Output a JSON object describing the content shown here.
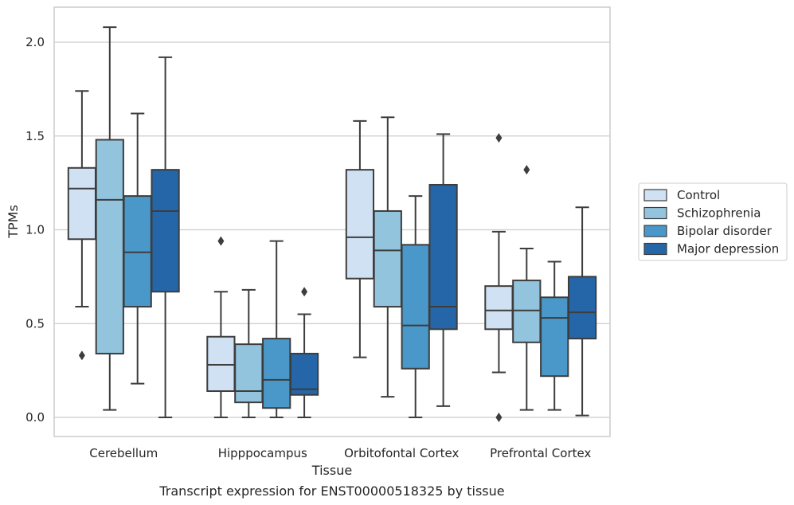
{
  "chart_data": {
    "type": "boxplot",
    "title": "Transcript expression for ENST00000518325 by tissue",
    "xlabel": "Tissue",
    "ylabel": "TPMs",
    "ylim": [
      -0.1,
      2.2
    ],
    "yticks": [
      0.0,
      0.5,
      1.0,
      1.5,
      2.0
    ],
    "ytick_labels": [
      "0.0",
      "0.5",
      "1.0",
      "1.5",
      "2.0"
    ],
    "grid": "horizontal",
    "legend_position": "right-outside",
    "categories": [
      "Cerebellum",
      "Hipppocampus",
      "Orbitofontal Cortex",
      "Prefrontal Cortex"
    ],
    "series": [
      {
        "name": "Control",
        "color": "#cfe1f2",
        "boxes": [
          {
            "whislo": 0.59,
            "q1": 0.95,
            "med": 1.22,
            "q3": 1.33,
            "whishi": 1.74,
            "fliers": [
              0.33
            ]
          },
          {
            "whislo": 0.0,
            "q1": 0.14,
            "med": 0.28,
            "q3": 0.43,
            "whishi": 0.67,
            "fliers": [
              0.94
            ]
          },
          {
            "whislo": 0.32,
            "q1": 0.74,
            "med": 0.96,
            "q3": 1.32,
            "whishi": 1.58,
            "fliers": []
          },
          {
            "whislo": 0.24,
            "q1": 0.47,
            "med": 0.57,
            "q3": 0.7,
            "whishi": 0.99,
            "fliers": [
              1.49,
              0.0
            ]
          }
        ]
      },
      {
        "name": "Schizophrenia",
        "color": "#93c4de",
        "boxes": [
          {
            "whislo": 0.04,
            "q1": 0.34,
            "med": 1.16,
            "q3": 1.48,
            "whishi": 2.08,
            "fliers": []
          },
          {
            "whislo": 0.0,
            "q1": 0.08,
            "med": 0.14,
            "q3": 0.39,
            "whishi": 0.68,
            "fliers": []
          },
          {
            "whislo": 0.11,
            "q1": 0.59,
            "med": 0.89,
            "q3": 1.1,
            "whishi": 1.6,
            "fliers": []
          },
          {
            "whislo": 0.04,
            "q1": 0.4,
            "med": 0.57,
            "q3": 0.73,
            "whishi": 0.9,
            "fliers": [
              1.32
            ]
          }
        ]
      },
      {
        "name": "Bipolar disorder",
        "color": "#4a98c9",
        "boxes": [
          {
            "whislo": 0.18,
            "q1": 0.59,
            "med": 0.88,
            "q3": 1.18,
            "whishi": 1.62,
            "fliers": []
          },
          {
            "whislo": 0.0,
            "q1": 0.05,
            "med": 0.2,
            "q3": 0.42,
            "whishi": 0.94,
            "fliers": []
          },
          {
            "whislo": 0.0,
            "q1": 0.26,
            "med": 0.49,
            "q3": 0.92,
            "whishi": 1.18,
            "fliers": []
          },
          {
            "whislo": 0.04,
            "q1": 0.22,
            "med": 0.53,
            "q3": 0.64,
            "whishi": 0.83,
            "fliers": []
          }
        ]
      },
      {
        "name": "Major depression",
        "color": "#2566a8",
        "boxes": [
          {
            "whislo": 0.0,
            "q1": 0.67,
            "med": 1.1,
            "q3": 1.32,
            "whishi": 1.92,
            "fliers": []
          },
          {
            "whislo": 0.0,
            "q1": 0.12,
            "med": 0.15,
            "q3": 0.34,
            "whishi": 0.55,
            "fliers": [
              0.67
            ]
          },
          {
            "whislo": 0.06,
            "q1": 0.47,
            "med": 0.59,
            "q3": 1.24,
            "whishi": 1.51,
            "fliers": []
          },
          {
            "whislo": 0.01,
            "q1": 0.42,
            "med": 0.56,
            "q3": 0.75,
            "whishi": 1.12,
            "fliers": []
          }
        ]
      }
    ]
  }
}
